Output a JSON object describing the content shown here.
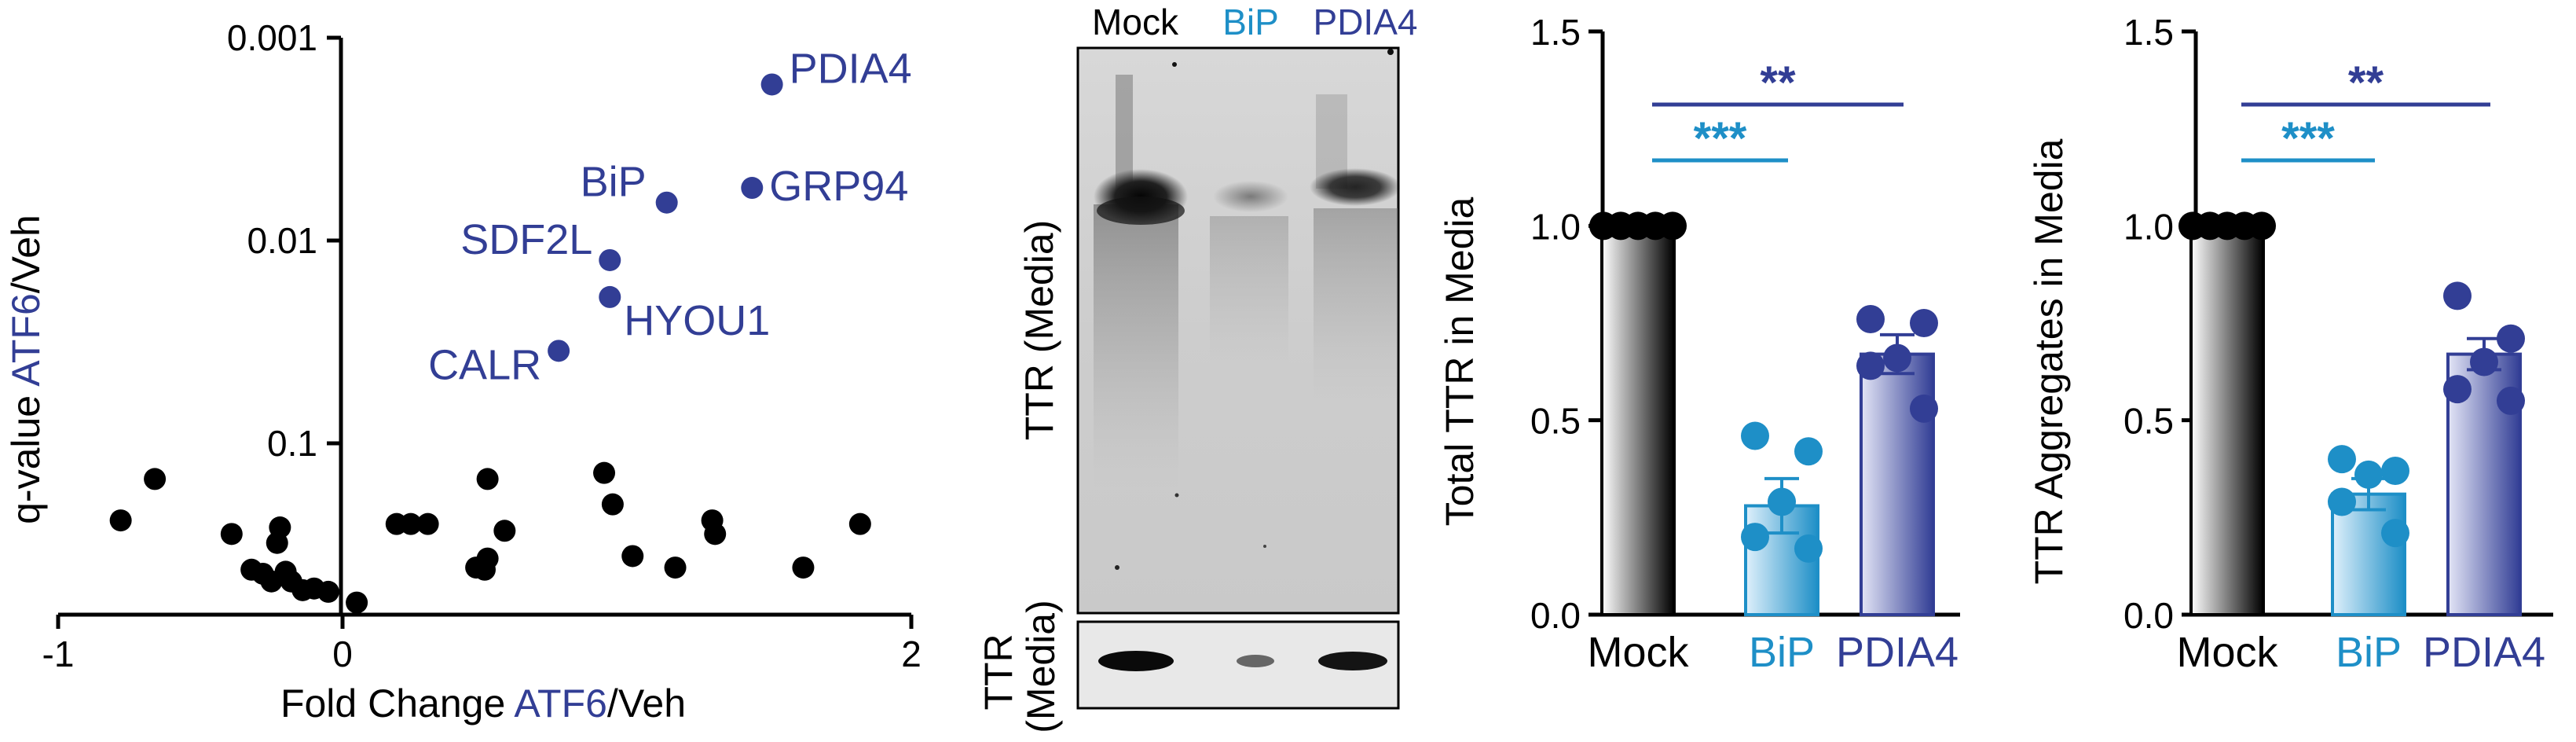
{
  "colors": {
    "navy": "#323E95",
    "cyan": "#1E8FC7",
    "black": "#000000",
    "mock_gradient": [
      "#ffffff",
      "#000000"
    ],
    "bip_gradient": [
      "#dff0fb",
      "#1E8FC7"
    ],
    "pdia4_gradient": [
      "#e3e5f6",
      "#323E95"
    ]
  },
  "chart_data": [
    {
      "type": "scatter",
      "xlabel_parts": [
        "Fold Change ",
        "ATF6",
        "/Veh"
      ],
      "ylabel_parts": [
        "q-value ",
        "ATF6",
        "/Veh"
      ],
      "x_ticks": [
        "-1",
        "0",
        "2"
      ],
      "x_tick_values": [
        -1,
        0,
        2
      ],
      "xlim": [
        -1,
        2
      ],
      "y_scale": "log-reversed",
      "y_ticks": [
        "0.001",
        "0.01",
        "0.1"
      ],
      "y_tick_values": [
        0.001,
        0.01,
        0.1
      ],
      "ylim": [
        0.001,
        0.7
      ],
      "highlighted": [
        {
          "name": "PDIA4",
          "x": 1.51,
          "y": 0.0017
        },
        {
          "name": "GRP94",
          "x": 1.44,
          "y": 0.0055
        },
        {
          "name": "BiP",
          "x": 1.14,
          "y": 0.0065
        },
        {
          "name": "SDF2L",
          "x": 0.94,
          "y": 0.0125
        },
        {
          "name": "HYOU1",
          "x": 0.94,
          "y": 0.019
        },
        {
          "name": "CALR",
          "x": 0.76,
          "y": 0.035
        }
      ],
      "other_points": [
        {
          "x": -0.66,
          "y": 0.15
        },
        {
          "x": -0.78,
          "y": 0.24
        },
        {
          "x": -0.39,
          "y": 0.28
        },
        {
          "x": -0.22,
          "y": 0.26
        },
        {
          "x": -0.23,
          "y": 0.31
        },
        {
          "x": -0.32,
          "y": 0.42
        },
        {
          "x": -0.28,
          "y": 0.44
        },
        {
          "x": -0.2,
          "y": 0.43
        },
        {
          "x": -0.25,
          "y": 0.48
        },
        {
          "x": -0.18,
          "y": 0.48
        },
        {
          "x": -0.14,
          "y": 0.53
        },
        {
          "x": -0.1,
          "y": 0.52
        },
        {
          "x": -0.05,
          "y": 0.54
        },
        {
          "x": 0.05,
          "y": 0.61
        },
        {
          "x": 0.19,
          "y": 0.25
        },
        {
          "x": 0.24,
          "y": 0.25
        },
        {
          "x": 0.3,
          "y": 0.25
        },
        {
          "x": 0.51,
          "y": 0.15
        },
        {
          "x": 0.57,
          "y": 0.27
        },
        {
          "x": 0.47,
          "y": 0.41
        },
        {
          "x": 0.5,
          "y": 0.42
        },
        {
          "x": 0.51,
          "y": 0.37
        },
        {
          "x": 0.92,
          "y": 0.14
        },
        {
          "x": 0.95,
          "y": 0.2
        },
        {
          "x": 1.02,
          "y": 0.36
        },
        {
          "x": 1.17,
          "y": 0.41
        },
        {
          "x": 1.3,
          "y": 0.24
        },
        {
          "x": 1.31,
          "y": 0.28
        },
        {
          "x": 1.62,
          "y": 0.41
        },
        {
          "x": 1.82,
          "y": 0.25
        }
      ]
    },
    {
      "type": "bar",
      "ylabel": "Total TTR in Media",
      "categories": [
        "Mock",
        "BiP",
        "PDIA4"
      ],
      "values": [
        1.0,
        0.28,
        0.67
      ],
      "errors": [
        0.0,
        0.07,
        0.05
      ],
      "points": [
        [
          1.0,
          1.0,
          1.0,
          1.0,
          1.0
        ],
        [
          0.46,
          0.42,
          0.29,
          0.2,
          0.17
        ],
        [
          0.76,
          0.75,
          0.66,
          0.64,
          0.53
        ]
      ],
      "ylim": [
        0,
        1.5
      ],
      "y_ticks": [
        "0.0",
        "0.5",
        "1.0",
        "1.5"
      ],
      "y_tick_values": [
        0,
        0.5,
        1.0,
        1.5
      ],
      "significance": [
        {
          "from": 0,
          "to": 1,
          "label": "***"
        },
        {
          "from": 0,
          "to": 2,
          "label": "**"
        }
      ]
    },
    {
      "type": "bar",
      "ylabel": "TTR Aggregates in Media",
      "categories": [
        "Mock",
        "BiP",
        "PDIA4"
      ],
      "values": [
        1.0,
        0.31,
        0.67
      ],
      "errors": [
        0.0,
        0.04,
        0.04
      ],
      "points": [
        [
          1.0,
          1.0,
          1.0,
          1.0,
          1.0
        ],
        [
          0.4,
          0.37,
          0.36,
          0.29,
          0.21
        ],
        [
          0.82,
          0.71,
          0.65,
          0.58,
          0.55
        ]
      ],
      "ylim": [
        0,
        1.5
      ],
      "y_ticks": [
        "0.0",
        "0.5",
        "1.0",
        "1.5"
      ],
      "y_tick_values": [
        0,
        0.5,
        1.0,
        1.5
      ],
      "significance": [
        {
          "from": 0,
          "to": 1,
          "label": "***"
        },
        {
          "from": 0,
          "to": 2,
          "label": "**"
        }
      ]
    }
  ],
  "blot": {
    "lanes": [
      "Mock",
      "BiP",
      "PDIA4"
    ],
    "top_label": "TTR (Media)",
    "bottom_label_lines": [
      "TTR",
      "(Media)"
    ]
  }
}
